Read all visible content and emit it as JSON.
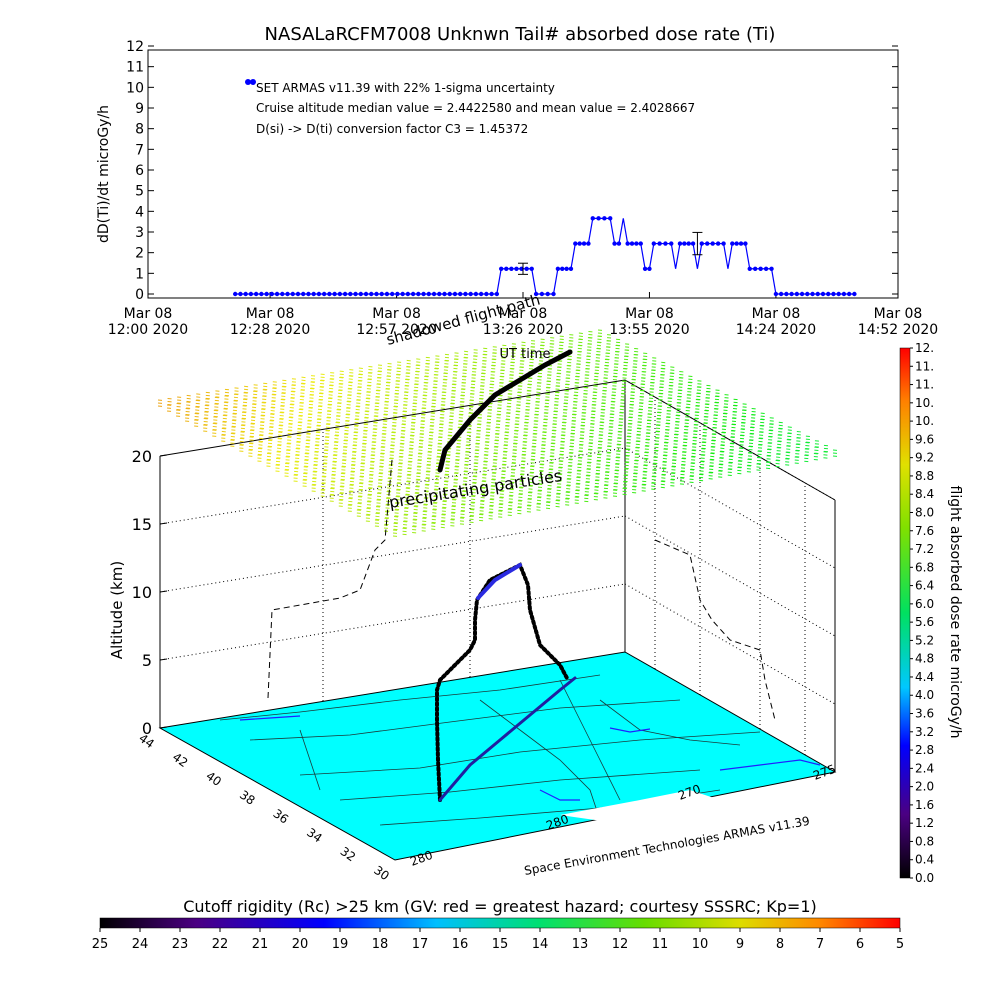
{
  "top_title": "NASALaRCFM7008  Unknwn Tail#  absorbed dose rate (Ti)",
  "chart_data": [
    {
      "type": "line",
      "title": "NASALaRCFM7008  Unknwn Tail#  absorbed dose rate (Ti)",
      "ylabel": "dD(Ti)/dt microGy/h",
      "xlabel": "UT time",
      "ylim": [
        0,
        12
      ],
      "yticks": [
        "0",
        "1",
        "2",
        "3",
        "4",
        "5",
        "6",
        "7",
        "8",
        "9",
        "10",
        "11",
        "12"
      ],
      "xticks": [
        {
          "line1": "Mar 08",
          "line2": "12:00 2020",
          "t": 0
        },
        {
          "line1": "Mar 08",
          "line2": "12:28 2020",
          "t": 28
        },
        {
          "line1": "Mar 08",
          "line2": "12:57 2020",
          "t": 57
        },
        {
          "line1": "Mar 08",
          "line2": "13:26 2020",
          "t": 86
        },
        {
          "line1": "Mar 08",
          "line2": "13:55 2020",
          "t": 115
        },
        {
          "line1": "Mar 08",
          "line2": "14:24 2020",
          "t": 144
        },
        {
          "line1": "Mar 08",
          "line2": "14:52 2020",
          "t": 172
        }
      ],
      "xlim_minutes": [
        0,
        172
      ],
      "legend": [
        "SET ARMAS v11.39 with 22% 1-sigma uncertainty",
        "Cruise altitude median value = 2.4422580 and mean value = 2.4028667",
        "D(si) -> D(ti) conversion factor C3 = 1.45372"
      ],
      "series": [
        {
          "color": "#0000ff",
          "points": [
            [
              20,
              0.0
            ],
            [
              80,
              0.0
            ],
            [
              81,
              1.22
            ],
            [
              88,
              1.22
            ],
            [
              89,
              0.0
            ],
            [
              93,
              0.0
            ],
            [
              94,
              1.22
            ],
            [
              97,
              1.22
            ],
            [
              98,
              2.44
            ],
            [
              101,
              2.44
            ],
            [
              102,
              3.66
            ],
            [
              106,
              3.66
            ],
            [
              107,
              2.44
            ],
            [
              108,
              2.44
            ],
            [
              109,
              3.66
            ],
            [
              110,
              2.44
            ],
            [
              113,
              2.44
            ],
            [
              114,
              1.22
            ],
            [
              115,
              1.22
            ],
            [
              116,
              2.44
            ],
            [
              120,
              2.44
            ],
            [
              121,
              1.22
            ],
            [
              122,
              2.44
            ],
            [
              125,
              2.44
            ],
            [
              126,
              1.22
            ],
            [
              127,
              2.44
            ],
            [
              132,
              2.44
            ],
            [
              133,
              1.22
            ],
            [
              134,
              2.44
            ],
            [
              137,
              2.44
            ],
            [
              138,
              1.22
            ],
            [
              143,
              1.22
            ],
            [
              144,
              0.0
            ],
            [
              162,
              0.0
            ]
          ]
        }
      ],
      "error_bars": [
        {
          "t": 86,
          "value": 1.22,
          "err": 0.27
        },
        {
          "t": 126,
          "value": 2.44,
          "err": 0.54
        }
      ]
    },
    {
      "type": "scatter",
      "zlabel": "Altitude (km)",
      "zticks": [
        "0",
        "5",
        "10",
        "15",
        "20"
      ],
      "lat_ticks": [
        "44",
        "42",
        "40",
        "38",
        "36",
        "34",
        "32",
        "30"
      ],
      "lon_ticks": [
        "280",
        "280",
        "275",
        "270"
      ],
      "annotations": [
        "shadowed flight path",
        "precipitating particles"
      ],
      "credit": "Space Environment Technologies ARMAS v11.39",
      "bg_color": "#00ffff"
    }
  ],
  "dose_colorbar": {
    "label": "flight absorbed dose rate microGy/h",
    "ticks": [
      "0.0",
      "0.4",
      "0.8",
      "1.2",
      "1.6",
      "2.0",
      "2.4",
      "2.8",
      "3.2",
      "3.6",
      "4.0",
      "4.4",
      "4.8",
      "5.2",
      "5.6",
      "6.0",
      "6.4",
      "6.8",
      "7.2",
      "7.6",
      "8.0",
      "8.4",
      "8.8",
      "9.2",
      "9.6",
      "10.",
      "10.",
      "11.",
      "11.",
      "12."
    ]
  },
  "rc_colorbar": {
    "label": "Cutoff rigidity (Rc) >25 km (GV: red = greatest hazard; courtesy SSSRC; Kp=1)",
    "ticks": [
      "25",
      "24",
      "23",
      "22",
      "21",
      "20",
      "19",
      "18",
      "17",
      "16",
      "15",
      "14",
      "13",
      "12",
      "11",
      "10",
      "9",
      "8",
      "7",
      "6",
      "5"
    ]
  }
}
